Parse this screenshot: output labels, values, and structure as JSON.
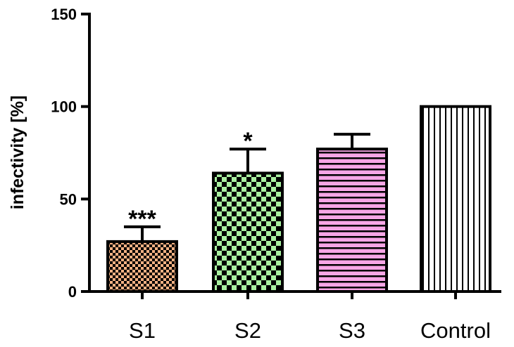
{
  "chart_data": {
    "type": "bar",
    "title": "",
    "xlabel": "",
    "ylabel": "infectivity [%]",
    "ylim": [
      0,
      150
    ],
    "yticks": [
      0,
      50,
      100,
      150
    ],
    "categories": [
      "S1",
      "S2",
      "S3",
      "Control"
    ],
    "values": [
      27,
      64,
      77,
      100
    ],
    "errors": [
      8,
      13,
      8,
      0
    ],
    "significance": [
      "***",
      "*",
      "",
      ""
    ],
    "colors": [
      "#f4b183",
      "#a9f0a0",
      "#f7a6e6",
      "#ffffff"
    ],
    "patterns": [
      "small-checker",
      "checker",
      "horizontal-lines",
      "vertical-lines"
    ]
  }
}
